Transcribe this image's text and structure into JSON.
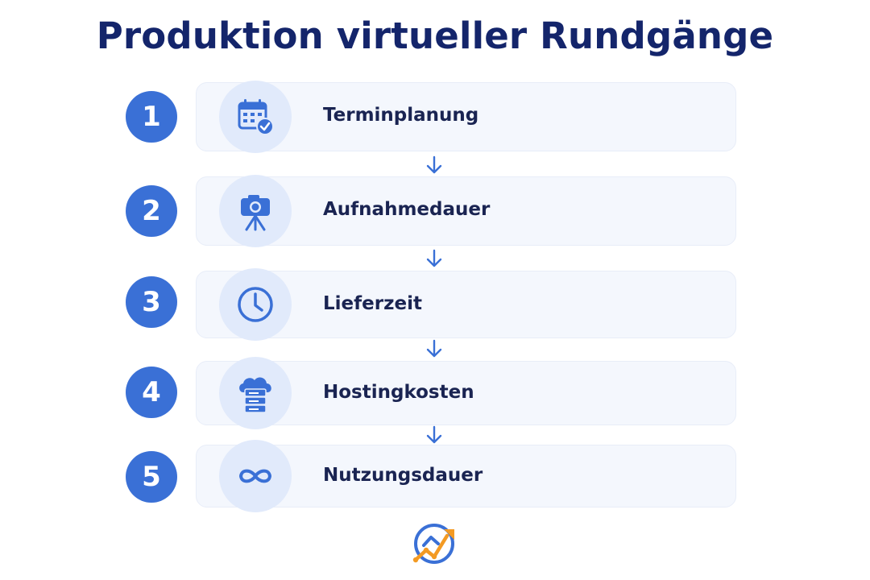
{
  "title": "Produktion virtueller Rundgänge",
  "colors": {
    "accent": "#3a70d6",
    "title": "#14256b",
    "card_bg": "#f4f7fd",
    "icon_bg": "#e1eafb",
    "logo_orange": "#f39a23"
  },
  "steps": [
    {
      "number": "1",
      "label": "Terminplanung",
      "icon": "calendar-check-icon"
    },
    {
      "number": "2",
      "label": "Aufnahmedauer",
      "icon": "camera-tripod-icon"
    },
    {
      "number": "3",
      "label": "Lieferzeit",
      "icon": "clock-icon"
    },
    {
      "number": "4",
      "label": "Hostingkosten",
      "icon": "cloud-server-icon"
    },
    {
      "number": "5",
      "label": "Nutzungsdauer",
      "icon": "infinity-icon"
    }
  ],
  "logo_icon": "growth-chart-logo-icon"
}
